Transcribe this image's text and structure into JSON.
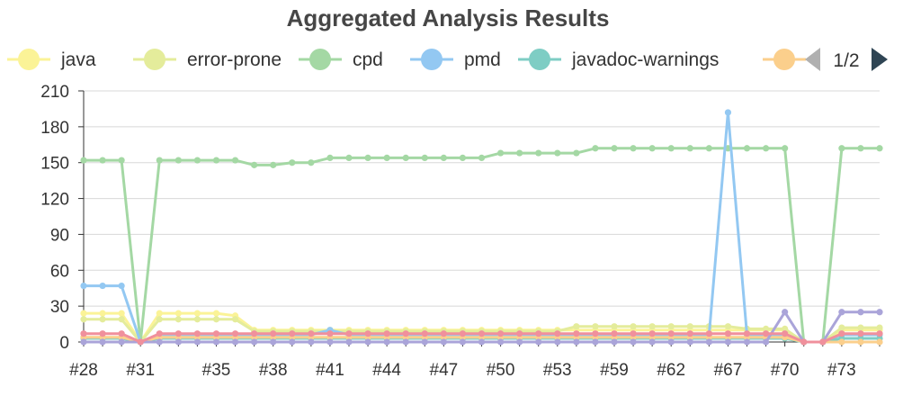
{
  "chart_data": {
    "type": "line",
    "title": "Aggregated Analysis Results",
    "xlabel": "",
    "ylabel": "",
    "ylim": [
      0,
      210
    ],
    "yticks": [
      0,
      30,
      60,
      90,
      120,
      150,
      180,
      210
    ],
    "grid": "horizontal",
    "legend_position": "top",
    "x": [
      "#28",
      "#29",
      "#30",
      "#31",
      "#32",
      "#33",
      "#34",
      "#35",
      "#36",
      "#37",
      "#38",
      "#39",
      "#40",
      "#41",
      "#42",
      "#43",
      "#44",
      "#45",
      "#46",
      "#47",
      "#48",
      "#49",
      "#50",
      "#51",
      "#52",
      "#53",
      "#54",
      "#58",
      "#59",
      "#60",
      "#61",
      "#62",
      "#63",
      "#64",
      "#67",
      "#68",
      "#69",
      "#70",
      "#71",
      "#72",
      "#73",
      "#74",
      "#75"
    ],
    "x_tick_labels": [
      "#28",
      "#31",
      "#35",
      "#38",
      "#41",
      "#44",
      "#47",
      "#50",
      "#53",
      "#59",
      "#62",
      "#67",
      "#70",
      "#73"
    ],
    "series": [
      {
        "name": "java",
        "color": "#fbf397",
        "values": [
          24,
          24,
          24,
          0,
          24,
          24,
          24,
          24,
          22,
          10,
          10,
          10,
          10,
          10,
          10,
          10,
          10,
          10,
          10,
          10,
          10,
          10,
          10,
          10,
          10,
          10,
          10,
          10,
          10,
          10,
          10,
          10,
          10,
          10,
          10,
          10,
          10,
          10,
          0,
          0,
          10,
          10,
          10
        ]
      },
      {
        "name": "error-prone",
        "color": "#e4ec9b",
        "values": [
          19,
          19,
          19,
          0,
          19,
          19,
          19,
          19,
          19,
          9,
          9,
          9,
          9,
          9,
          9,
          9,
          9,
          9,
          9,
          9,
          9,
          9,
          9,
          9,
          9,
          9,
          13,
          13,
          13,
          13,
          13,
          13,
          13,
          13,
          13,
          11,
          11,
          11,
          0,
          0,
          12,
          12,
          12
        ]
      },
      {
        "name": "cpd",
        "color": "#a4d8a4",
        "values": [
          152,
          152,
          152,
          0,
          152,
          152,
          152,
          152,
          152,
          148,
          148,
          150,
          150,
          154,
          154,
          154,
          154,
          154,
          154,
          154,
          154,
          154,
          158,
          158,
          158,
          158,
          158,
          162,
          162,
          162,
          162,
          162,
          162,
          162,
          162,
          162,
          162,
          162,
          0,
          0,
          162,
          162,
          162
        ]
      },
      {
        "name": "pmd",
        "color": "#93c8f2",
        "values": [
          47,
          47,
          47,
          0,
          6,
          6,
          6,
          6,
          6,
          6,
          6,
          6,
          6,
          10,
          6,
          6,
          6,
          6,
          6,
          6,
          6,
          6,
          6,
          6,
          6,
          6,
          6,
          6,
          6,
          6,
          6,
          6,
          6,
          6,
          192,
          6,
          6,
          6,
          0,
          0,
          6,
          6,
          6
        ]
      },
      {
        "name": "javadoc-warnings",
        "color": "#7ecdc4",
        "values": [
          3,
          3,
          3,
          0,
          3,
          3,
          3,
          3,
          3,
          3,
          3,
          3,
          3,
          3,
          3,
          3,
          3,
          3,
          3,
          3,
          3,
          3,
          3,
          3,
          3,
          3,
          3,
          3,
          3,
          3,
          3,
          3,
          3,
          3,
          3,
          3,
          3,
          3,
          0,
          0,
          3,
          3,
          3
        ]
      },
      {
        "name": "",
        "color": "#fbcf8c",
        "values": [
          4,
          4,
          4,
          0,
          4,
          4,
          4,
          4,
          4,
          4,
          4,
          4,
          4,
          4,
          4,
          4,
          4,
          4,
          4,
          4,
          4,
          4,
          4,
          4,
          4,
          4,
          4,
          4,
          4,
          4,
          4,
          4,
          4,
          4,
          4,
          4,
          4,
          4,
          0,
          0,
          0,
          0,
          0
        ]
      },
      {
        "name": "",
        "color": "#aaa4d9",
        "values": [
          0,
          0,
          0,
          0,
          0,
          0,
          0,
          0,
          0,
          0,
          0,
          0,
          0,
          0,
          0,
          0,
          0,
          0,
          0,
          0,
          0,
          0,
          0,
          0,
          0,
          0,
          0,
          0,
          0,
          0,
          0,
          0,
          0,
          0,
          0,
          0,
          0,
          25,
          0,
          0,
          25,
          25,
          25
        ]
      },
      {
        "name": "",
        "color": "#f0909c",
        "values": [
          7,
          7,
          7,
          0,
          7,
          7,
          7,
          7,
          7,
          7,
          7,
          7,
          7,
          7,
          7,
          7,
          7,
          7,
          7,
          7,
          7,
          7,
          7,
          7,
          7,
          7,
          7,
          7,
          7,
          7,
          7,
          7,
          7,
          7,
          7,
          7,
          7,
          7,
          0,
          0,
          7,
          7,
          7
        ]
      }
    ]
  },
  "legend": {
    "visible_count": 6,
    "page_indicator": "1/2"
  },
  "icons": {
    "prev": "triangle-left-icon",
    "next": "triangle-right-icon"
  }
}
